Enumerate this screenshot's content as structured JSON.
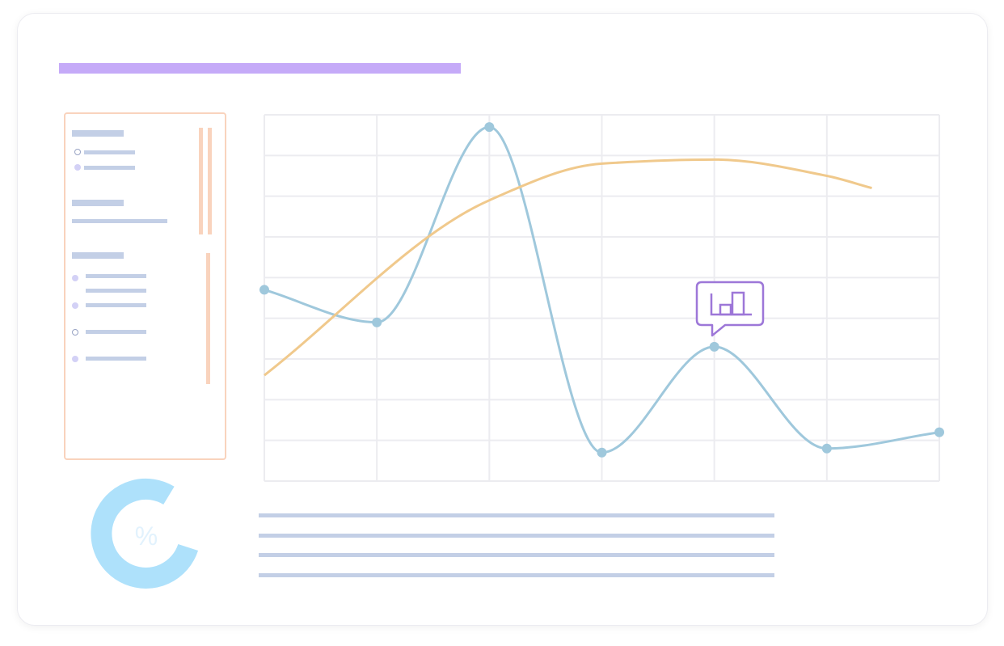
{
  "colors": {
    "accent": "#c5aaf8",
    "panel_border": "#f9d3bd",
    "placeholder": "#c3cfe6",
    "series_blue": "#9fc8dc",
    "series_orange": "#f0c98c",
    "gauge": "#aee1fb",
    "callout": "#9d77d8"
  },
  "icons": {
    "callout": "bar-chart-speech-bubble-icon",
    "gauge": "percent-icon"
  },
  "gauge": {
    "symbol": "%"
  },
  "chart_data": {
    "type": "line",
    "grid": true,
    "xlim": [
      0,
      6
    ],
    "ylim": [
      0,
      9
    ],
    "x": [
      0,
      1,
      2,
      3,
      4,
      5,
      6
    ],
    "series": [
      {
        "values": [
          4.7,
          3.9,
          8.7,
          0.7,
          3.3,
          0.8,
          1.2
        ],
        "markers": true
      },
      {
        "x": [
          0,
          2,
          3,
          4,
          5,
          5.4
        ],
        "values": [
          2.6,
          6.9,
          7.8,
          7.9,
          7.5,
          7.2
        ],
        "markers": false
      }
    ]
  }
}
